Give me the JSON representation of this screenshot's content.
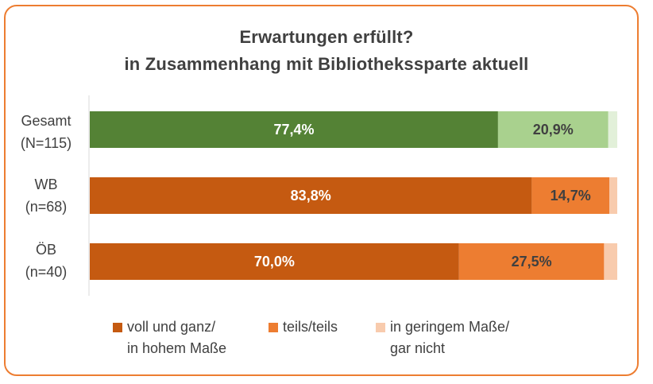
{
  "chart_data": {
    "type": "bar",
    "orientation": "horizontal",
    "stacked": true,
    "title": "Erwartungen erfüllt?",
    "subtitle": "in Zusammenhang mit Bibliothekssparte aktuell",
    "categories": [
      {
        "line1": "Gesamt",
        "line2": "(N=115)"
      },
      {
        "line1": "WB",
        "line2": "(n=68)"
      },
      {
        "line1": "ÖB",
        "line2": "(n=40)"
      }
    ],
    "series": [
      {
        "name": "voll und ganz/ in hohem Maße",
        "values": [
          77.4,
          83.8,
          70.0
        ],
        "labels": [
          "77,4%",
          "83,8%",
          "70,0%"
        ]
      },
      {
        "name": "teils/teils",
        "values": [
          20.9,
          14.7,
          27.5
        ],
        "labels": [
          "20,9%",
          "14,7%",
          "27,5%"
        ]
      },
      {
        "name": "in geringem Maße/ gar nicht",
        "values": [
          1.7,
          1.5,
          2.5
        ],
        "labels": [
          "",
          "",
          ""
        ]
      }
    ],
    "bar_colors": [
      [
        "#548235",
        "#A9D18E",
        "#E2F0D9"
      ],
      [
        "#C55A11",
        "#ED7D31",
        "#F8CBAD"
      ],
      [
        "#C55A11",
        "#ED7D31",
        "#F8CBAD"
      ]
    ],
    "label_colors": [
      "#ffffff",
      "#404040",
      "#404040"
    ],
    "legend": {
      "placement": "bottom",
      "items": [
        {
          "line1": "voll und ganz/",
          "line2": "in hohem Maße",
          "color": "#C55A11"
        },
        {
          "line1": "teils/teils",
          "line2": "",
          "color": "#ED7D31"
        },
        {
          "line1": "in geringem Maße/",
          "line2": "gar nicht",
          "color": "#F8CBAD"
        }
      ]
    },
    "xlim": [
      0,
      100
    ],
    "grid": false
  }
}
